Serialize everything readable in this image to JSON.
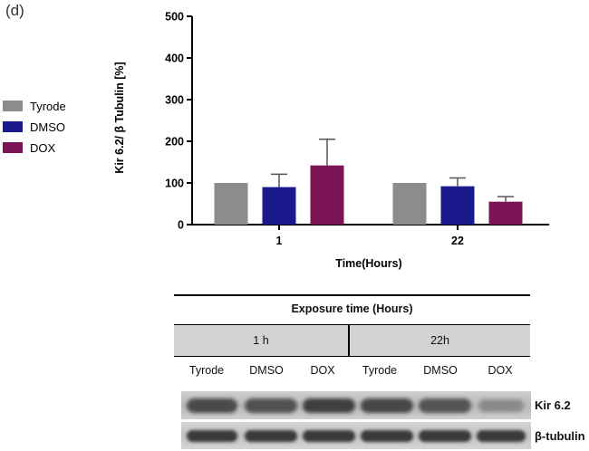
{
  "panel_label": "(d)",
  "chart_data": {
    "type": "bar",
    "categories": [
      "1",
      "22"
    ],
    "xlabel": "Time(Hours)",
    "ylabel": "Kir 6.2/ β Tubulin [%]",
    "ylim": [
      0,
      500
    ],
    "yticks": [
      0,
      100,
      200,
      300,
      400,
      500
    ],
    "legend_position": "left",
    "series": [
      {
        "name": "Tyrode",
        "color": "#8c8c8c",
        "values": [
          100,
          100
        ],
        "errors": [
          0,
          0
        ]
      },
      {
        "name": "DMSO",
        "color": "#1a1a8c",
        "values": [
          90,
          92
        ],
        "errors": [
          31,
          20
        ]
      },
      {
        "name": "DOX",
        "color": "#7b1555",
        "values": [
          142,
          55
        ],
        "errors": [
          63,
          12
        ]
      }
    ]
  },
  "blot": {
    "header": "Exposure time (Hours)",
    "time_groups": [
      "1 h",
      "22h"
    ],
    "lanes": [
      "Tyrode",
      "DMSO",
      "DOX",
      "Tyrode",
      "DMSO",
      "DOX"
    ],
    "proteins": [
      "Kir 6.2",
      "β-tubulin"
    ]
  }
}
